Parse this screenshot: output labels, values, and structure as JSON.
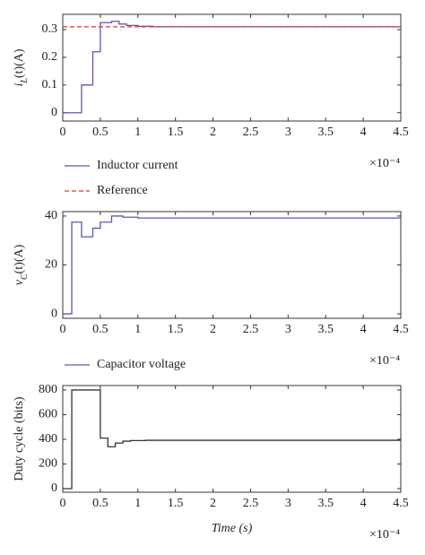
{
  "chart_data": [
    {
      "type": "line",
      "step": "post",
      "y_label": {
        "base": "i",
        "sub": "L",
        "rest": "(t)(A)"
      },
      "x_multiplier": "×10⁻⁴",
      "xlim": [
        0,
        4.5
      ],
      "xticks": [
        0,
        0.5,
        1,
        1.5,
        2,
        2.5,
        3,
        3.5,
        4,
        4.5
      ],
      "ylim": [
        -0.03,
        0.355
      ],
      "yticks": [
        0,
        0.1,
        0.2,
        0.3
      ],
      "series": [
        {
          "name": "Inductor current",
          "color": "#5a5aae",
          "dash": false,
          "x": [
            0,
            0.25,
            0.4,
            0.5,
            0.65,
            0.75,
            0.85,
            1.0,
            1.2,
            4.5
          ],
          "values": [
            0,
            0.1,
            0.22,
            0.325,
            0.33,
            0.32,
            0.315,
            0.312,
            0.31,
            0.31
          ]
        },
        {
          "name": "Reference",
          "color": "#d03a3a",
          "dash": true,
          "x": [
            0,
            4.5
          ],
          "values": [
            0.31,
            0.31
          ]
        }
      ]
    },
    {
      "type": "line",
      "step": "post",
      "y_label": {
        "base": "v",
        "sub": "C",
        "rest": "(t)(A)"
      },
      "x_multiplier": "×10⁻⁴",
      "xlim": [
        0,
        4.5
      ],
      "xticks": [
        0,
        0.5,
        1,
        1.5,
        2,
        2.5,
        3,
        3.5,
        4,
        4.5
      ],
      "ylim": [
        -1.8,
        41.8
      ],
      "yticks": [
        0,
        20,
        40
      ],
      "series": [
        {
          "name": "Capacitor voltage",
          "color": "#5a5aae",
          "dash": false,
          "x": [
            0,
            0.12,
            0.25,
            0.4,
            0.5,
            0.65,
            0.8,
            1.0,
            4.5
          ],
          "values": [
            0,
            37.5,
            31.5,
            35,
            37.5,
            40,
            39.5,
            39.2,
            39.2
          ]
        }
      ]
    },
    {
      "type": "line",
      "step": "post",
      "y_label": {
        "base": "Duty cycle (bits)"
      },
      "x_label": "Time (s)",
      "x_multiplier": "×10⁻⁴",
      "xlim": [
        0,
        4.5
      ],
      "xticks": [
        0,
        0.5,
        1,
        1.5,
        2,
        2.5,
        3,
        3.5,
        4,
        4.5
      ],
      "ylim": [
        -29,
        836
      ],
      "yticks": [
        0,
        200,
        400,
        600,
        800
      ],
      "series": [
        {
          "color": "#333333",
          "dash": false,
          "x": [
            0,
            0.12,
            0.5,
            0.6,
            0.7,
            0.8,
            0.9,
            1.1,
            4.5
          ],
          "values": [
            0,
            800,
            410,
            340,
            370,
            385,
            390,
            392,
            392
          ]
        }
      ]
    }
  ]
}
